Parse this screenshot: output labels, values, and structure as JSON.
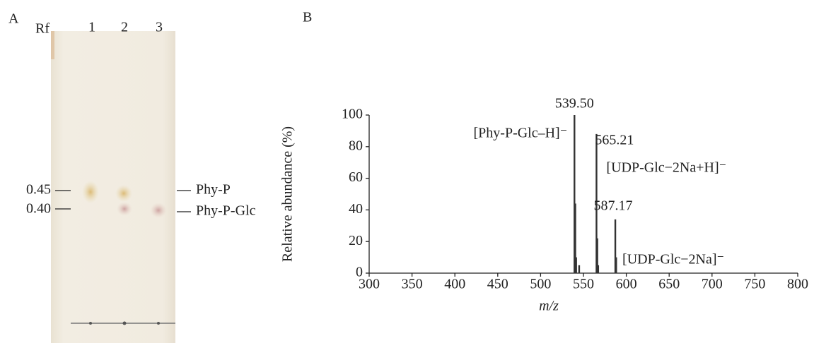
{
  "panel_a": {
    "panel_label": "A",
    "rf_header": "Rf",
    "lanes": [
      "1",
      "2",
      "3"
    ],
    "rf_labels": [
      "0.45",
      "0.40"
    ],
    "band_labels": [
      "Phy-P",
      "Phy-P-Glc"
    ]
  },
  "chart_data": {
    "type": "bar",
    "panel_label": "B",
    "x_label": "m/z",
    "y_label": "Relative abundance (%)",
    "x": [
      539.5,
      540.5,
      541.5,
      545,
      565.21,
      566.2,
      567.2,
      587.17,
      588.2
    ],
    "values": [
      100,
      44,
      10,
      5,
      88,
      22,
      5,
      34,
      10
    ],
    "x_labels": [
      "539.50",
      null,
      null,
      null,
      "565.21",
      null,
      null,
      "587.17",
      null
    ],
    "ion_labels": [
      "[Phy-P-Glc–H]⁻",
      null,
      null,
      null,
      "[UDP-Glc−2Na+H]⁻",
      null,
      null,
      "[UDP-Glc−2Na]⁻",
      null
    ],
    "color": "#333333",
    "xlim": [
      300,
      800
    ],
    "xticks": [
      300,
      350,
      400,
      450,
      500,
      550,
      600,
      650,
      700,
      750,
      800
    ],
    "ylim": [
      0,
      100
    ],
    "yticks": [
      0,
      20,
      40,
      60,
      80,
      100
    ]
  }
}
